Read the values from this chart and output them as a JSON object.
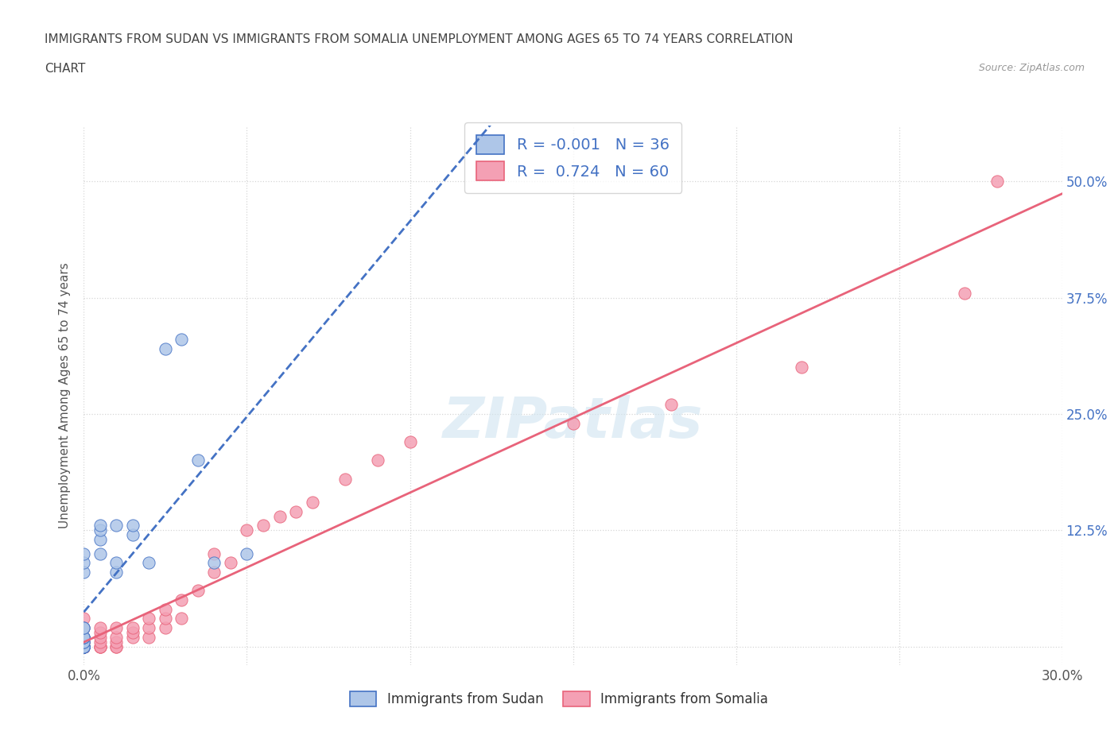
{
  "title_line1": "IMMIGRANTS FROM SUDAN VS IMMIGRANTS FROM SOMALIA UNEMPLOYMENT AMONG AGES 65 TO 74 YEARS CORRELATION",
  "title_line2": "CHART",
  "source_text": "Source: ZipAtlas.com",
  "ylabel": "Unemployment Among Ages 65 to 74 years",
  "xlim": [
    0.0,
    0.3
  ],
  "ylim": [
    -0.02,
    0.56
  ],
  "xticks": [
    0.0,
    0.05,
    0.1,
    0.15,
    0.2,
    0.25,
    0.3
  ],
  "yticks": [
    0.0,
    0.125,
    0.25,
    0.375,
    0.5
  ],
  "legend_label1": "Immigrants from Sudan",
  "legend_label2": "Immigrants from Somalia",
  "R1": -0.001,
  "N1": 36,
  "R2": 0.724,
  "N2": 60,
  "sudan_color": "#aec6e8",
  "somalia_color": "#f4a0b4",
  "sudan_line_color": "#4472c4",
  "somalia_line_color": "#e8637a",
  "sudan_scatter_x": [
    0.0,
    0.0,
    0.0,
    0.0,
    0.0,
    0.0,
    0.0,
    0.0,
    0.0,
    0.0,
    0.0,
    0.0,
    0.0,
    0.0,
    0.0,
    0.0,
    0.0,
    0.0,
    0.0,
    0.0,
    0.0,
    0.005,
    0.005,
    0.005,
    0.005,
    0.01,
    0.01,
    0.01,
    0.015,
    0.015,
    0.02,
    0.025,
    0.03,
    0.035,
    0.04,
    0.05
  ],
  "sudan_scatter_y": [
    0.0,
    0.0,
    0.0,
    0.0,
    0.0,
    0.0,
    0.0,
    0.0,
    0.0,
    0.0,
    0.005,
    0.005,
    0.01,
    0.01,
    0.01,
    0.01,
    0.02,
    0.02,
    0.08,
    0.09,
    0.1,
    0.1,
    0.115,
    0.125,
    0.13,
    0.08,
    0.09,
    0.13,
    0.12,
    0.13,
    0.09,
    0.32,
    0.33,
    0.2,
    0.09,
    0.1
  ],
  "somalia_scatter_x": [
    0.0,
    0.0,
    0.0,
    0.0,
    0.0,
    0.0,
    0.0,
    0.0,
    0.0,
    0.0,
    0.0,
    0.0,
    0.0,
    0.0,
    0.0,
    0.0,
    0.0,
    0.0,
    0.0,
    0.0,
    0.005,
    0.005,
    0.005,
    0.005,
    0.005,
    0.005,
    0.005,
    0.01,
    0.01,
    0.01,
    0.01,
    0.01,
    0.015,
    0.015,
    0.015,
    0.02,
    0.02,
    0.02,
    0.025,
    0.025,
    0.025,
    0.03,
    0.03,
    0.035,
    0.04,
    0.04,
    0.045,
    0.05,
    0.055,
    0.06,
    0.065,
    0.07,
    0.08,
    0.09,
    0.1,
    0.15,
    0.18,
    0.22,
    0.27,
    0.28
  ],
  "somalia_scatter_y": [
    0.0,
    0.0,
    0.0,
    0.0,
    0.0,
    0.0,
    0.0,
    0.0,
    0.0,
    0.0,
    0.0,
    0.0,
    0.0,
    0.0,
    0.005,
    0.005,
    0.01,
    0.01,
    0.02,
    0.03,
    0.0,
    0.0,
    0.0,
    0.005,
    0.01,
    0.015,
    0.02,
    0.0,
    0.0,
    0.005,
    0.01,
    0.02,
    0.01,
    0.015,
    0.02,
    0.01,
    0.02,
    0.03,
    0.02,
    0.03,
    0.04,
    0.03,
    0.05,
    0.06,
    0.08,
    0.1,
    0.09,
    0.125,
    0.13,
    0.14,
    0.145,
    0.155,
    0.18,
    0.2,
    0.22,
    0.24,
    0.26,
    0.3,
    0.38,
    0.5
  ],
  "watermark_text": "ZIPatlas",
  "background_color": "#ffffff",
  "grid_color": "#cccccc",
  "grid_style": "--"
}
